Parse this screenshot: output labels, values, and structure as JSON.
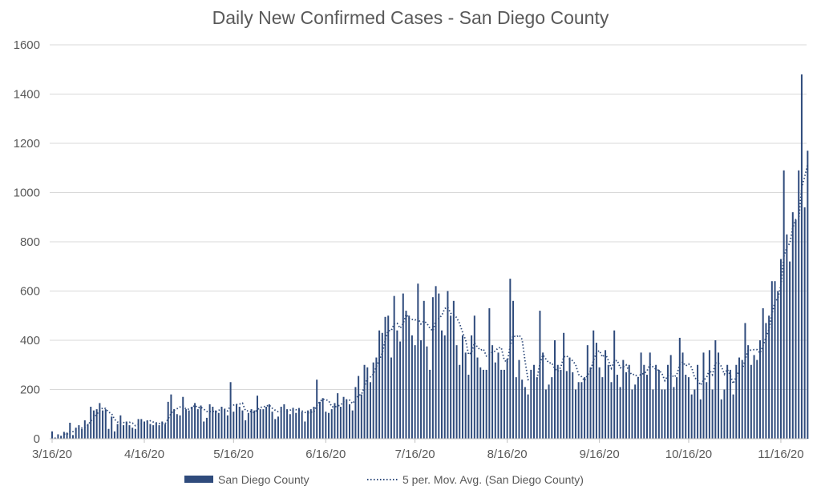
{
  "chart_data": {
    "type": "bar",
    "title": "Daily New Confirmed Cases - San Diego County",
    "xlabel": "",
    "ylabel": "",
    "ylim": [
      0,
      1600
    ],
    "yticks": [
      0,
      200,
      400,
      600,
      800,
      1000,
      1200,
      1400,
      1600
    ],
    "grid": true,
    "start_date": "2020-03-16",
    "xtick_labels": [
      "3/16/20",
      "4/16/20",
      "5/16/20",
      "6/16/20",
      "7/16/20",
      "8/16/20",
      "9/16/20",
      "10/16/20",
      "11/16/20"
    ],
    "legend_position": "bottom",
    "bar_color": "#2f4b7c",
    "series": [
      {
        "name": "San Diego County",
        "type": "bar",
        "values": [
          30,
          5,
          18,
          12,
          28,
          25,
          65,
          15,
          45,
          55,
          40,
          75,
          60,
          130,
          115,
          120,
          145,
          115,
          120,
          40,
          90,
          30,
          60,
          95,
          55,
          70,
          55,
          45,
          40,
          80,
          80,
          70,
          75,
          60,
          55,
          65,
          55,
          70,
          60,
          150,
          180,
          120,
          100,
          95,
          170,
          120,
          115,
          130,
          145,
          120,
          135,
          70,
          85,
          140,
          130,
          115,
          105,
          130,
          120,
          95,
          230,
          110,
          140,
          130,
          115,
          75,
          105,
          120,
          115,
          175,
          120,
          120,
          130,
          140,
          110,
          80,
          90,
          130,
          140,
          120,
          100,
          125,
          105,
          125,
          110,
          70,
          115,
          120,
          130,
          240,
          150,
          165,
          110,
          105,
          120,
          145,
          185,
          130,
          170,
          160,
          140,
          115,
          210,
          255,
          180,
          300,
          290,
          230,
          310,
          330,
          440,
          430,
          495,
          500,
          330,
          580,
          440,
          395,
          590,
          520,
          500,
          420,
          380,
          630,
          400,
          560,
          375,
          280,
          575,
          620,
          590,
          440,
          420,
          600,
          500,
          560,
          380,
          300,
          420,
          350,
          260,
          420,
          500,
          330,
          290,
          280,
          280,
          530,
          380,
          310,
          350,
          280,
          280,
          325,
          650,
          560,
          250,
          320,
          240,
          210,
          180,
          280,
          300,
          250,
          520,
          350,
          200,
          220,
          250,
          400,
          300,
          280,
          430,
          275,
          330,
          270,
          200,
          230,
          230,
          250,
          380,
          290,
          440,
          390,
          290,
          250,
          360,
          300,
          230,
          440,
          260,
          210,
          320,
          270,
          300,
          200,
          220,
          250,
          350,
          300,
          260,
          350,
          200,
          300,
          280,
          200,
          200,
          300,
          340,
          210,
          250,
          410,
          350,
          260,
          250,
          180,
          200,
          300,
          160,
          350,
          230,
          360,
          200,
          400,
          350,
          160,
          200,
          300,
          280,
          180,
          300,
          330,
          320,
          470,
          380,
          300,
          340,
          320,
          400,
          530,
          470,
          500,
          640,
          640,
          600,
          730,
          1090,
          830,
          720,
          920,
          890,
          1090,
          1480,
          940,
          1170
        ]
      },
      {
        "name": "5 per. Mov. Avg. (San Diego County)",
        "type": "line",
        "period": 5,
        "style": "dotted"
      }
    ]
  }
}
